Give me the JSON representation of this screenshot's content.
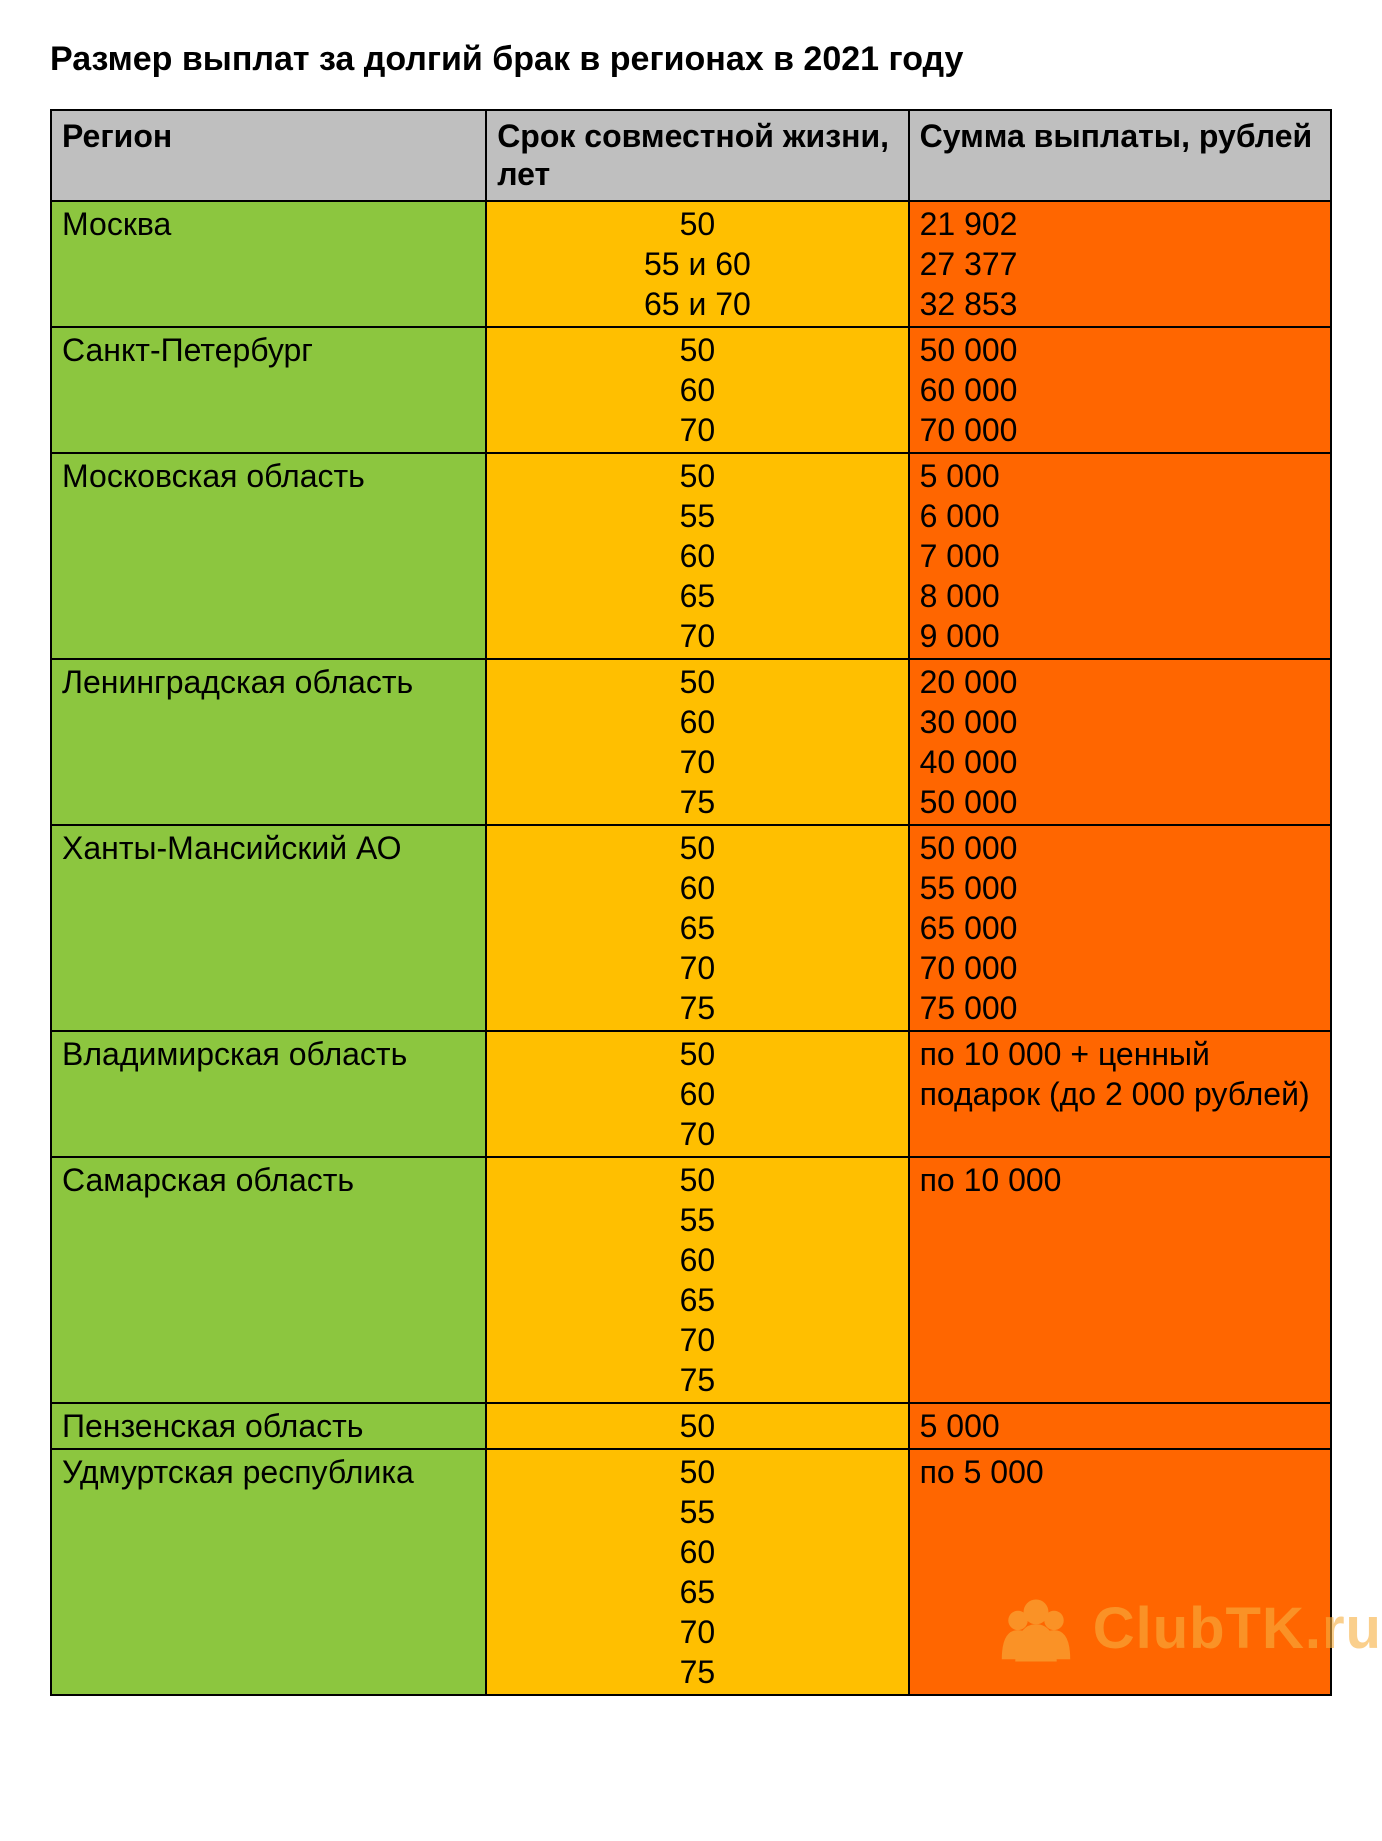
{
  "title": "Размер выплат за долгий брак в регионах в 2021 году",
  "columns": {
    "region": "Регион",
    "years": "Срок совместной жизни, лет",
    "amount": "Сумма выплаты, рублей"
  },
  "col_widths": {
    "region_pct": 34,
    "years_pct": 33,
    "amount_pct": 33
  },
  "header_bg": "#bfbfbf",
  "region_bg": "#8cc63f",
  "years_bg": "#ffbf00",
  "amount_bg": "#ff6600",
  "border_color": "#000000",
  "text_color": "#000000",
  "font_size_pt": 24,
  "rows": [
    {
      "region": "Москва",
      "years": [
        "50",
        "55 и 60",
        "65 и 70"
      ],
      "amount": [
        "21 902",
        "27 377",
        "32 853"
      ]
    },
    {
      "region": "Санкт-Петербург",
      "years": [
        "50",
        "60",
        "70"
      ],
      "amount": [
        "50 000",
        "60 000",
        "70 000"
      ]
    },
    {
      "region": "Московская область",
      "years": [
        "50",
        "55",
        "60",
        "65",
        "70"
      ],
      "amount": [
        "5 000",
        "6 000",
        "7 000",
        "8 000",
        "9 000"
      ]
    },
    {
      "region": "Ленинградская область",
      "years": [
        "50",
        "60",
        "70",
        "75"
      ],
      "amount": [
        "20 000",
        "30 000",
        "40 000",
        "50 000"
      ]
    },
    {
      "region": "Ханты-Мансийский АО",
      "years": [
        "50",
        "60",
        "65",
        "70",
        "75"
      ],
      "amount": [
        "50 000",
        "55 000",
        "65 000",
        "70 000",
        "75 000"
      ]
    },
    {
      "region": "Владимирская область",
      "years": [
        "50",
        "60",
        "70"
      ],
      "amount": [
        "по 10 000 + ценный подарок (до 2 000 рублей)"
      ]
    },
    {
      "region": "Самарская область",
      "years": [
        "50",
        "55",
        "60",
        "65",
        "70",
        "75"
      ],
      "amount": [
        "по 10 000"
      ]
    },
    {
      "region": "Пензенская область",
      "years": [
        "50"
      ],
      "amount": [
        "5 000"
      ]
    },
    {
      "region": "Удмуртская республика",
      "years": [
        "50",
        "55",
        "60",
        "65",
        "70",
        "75"
      ],
      "amount": [
        "по 5 000"
      ]
    }
  ],
  "watermark": {
    "text": "ClubTK.ru",
    "icon_color": "#f8b040"
  }
}
